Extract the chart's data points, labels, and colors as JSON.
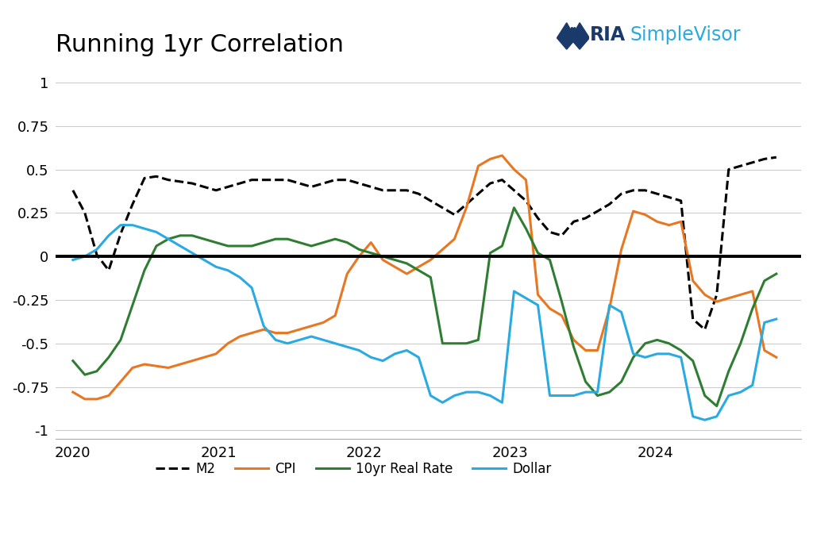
{
  "title": "Running 1yr Correlation",
  "title_fontsize": 22,
  "background_color": "#ffffff",
  "ylim": [
    -1.05,
    1.1
  ],
  "yticks": [
    -1,
    -0.75,
    -0.5,
    -0.25,
    0,
    0.25,
    0.5,
    0.75,
    1
  ],
  "xtick_labels": [
    "2020",
    "2021",
    "2022",
    "2023",
    "2024"
  ],
  "series": {
    "M2": {
      "color": "#000000",
      "linestyle": "--",
      "linewidth": 2.2,
      "y": [
        0.38,
        0.25,
        0.01,
        -0.08,
        0.13,
        0.3,
        0.45,
        0.46,
        0.44,
        0.43,
        0.42,
        0.4,
        0.38,
        0.4,
        0.42,
        0.44,
        0.44,
        0.44,
        0.44,
        0.42,
        0.4,
        0.42,
        0.44,
        0.44,
        0.42,
        0.4,
        0.38,
        0.38,
        0.38,
        0.36,
        0.32,
        0.28,
        0.24,
        0.3,
        0.36,
        0.42,
        0.44,
        0.38,
        0.32,
        0.22,
        0.14,
        0.12,
        0.2,
        0.22,
        0.26,
        0.3,
        0.36,
        0.38,
        0.38,
        0.36,
        0.34,
        0.32,
        -0.36,
        -0.42,
        -0.22,
        0.5,
        0.52,
        0.54,
        0.56,
        0.57
      ]
    },
    "CPI": {
      "color": "#e87722",
      "linestyle": "-",
      "linewidth": 2.2,
      "y": [
        -0.78,
        -0.82,
        -0.82,
        -0.8,
        -0.72,
        -0.64,
        -0.62,
        -0.63,
        -0.64,
        -0.62,
        -0.6,
        -0.58,
        -0.56,
        -0.5,
        -0.46,
        -0.44,
        -0.42,
        -0.44,
        -0.44,
        -0.42,
        -0.4,
        -0.38,
        -0.34,
        -0.1,
        0.0,
        0.08,
        -0.02,
        -0.06,
        -0.1,
        -0.06,
        -0.02,
        0.04,
        0.1,
        0.28,
        0.52,
        0.56,
        0.58,
        0.5,
        0.44,
        -0.22,
        -0.3,
        -0.34,
        -0.48,
        -0.54,
        -0.54,
        -0.3,
        0.04,
        0.26,
        0.24,
        0.2,
        0.18,
        0.2,
        -0.14,
        -0.22,
        -0.26,
        -0.24,
        -0.22,
        -0.2,
        -0.54,
        -0.58
      ]
    },
    "10yr_Real_Rate": {
      "color": "#2e7d32",
      "linestyle": "-",
      "linewidth": 2.2,
      "y": [
        -0.6,
        -0.68,
        -0.66,
        -0.58,
        -0.48,
        -0.28,
        -0.08,
        0.06,
        0.1,
        0.12,
        0.12,
        0.1,
        0.08,
        0.06,
        0.06,
        0.06,
        0.08,
        0.1,
        0.1,
        0.08,
        0.06,
        0.08,
        0.1,
        0.08,
        0.04,
        0.02,
        0.0,
        -0.02,
        -0.04,
        -0.08,
        -0.12,
        -0.5,
        -0.5,
        -0.5,
        -0.48,
        0.02,
        0.06,
        0.28,
        0.16,
        0.02,
        -0.02,
        -0.26,
        -0.52,
        -0.72,
        -0.8,
        -0.78,
        -0.72,
        -0.58,
        -0.5,
        -0.48,
        -0.5,
        -0.54,
        -0.6,
        -0.8,
        -0.86,
        -0.66,
        -0.5,
        -0.3,
        -0.14,
        -0.1
      ]
    },
    "Dollar": {
      "color": "#29aae1",
      "linestyle": "-",
      "linewidth": 2.2,
      "y": [
        -0.02,
        0.0,
        0.04,
        0.12,
        0.18,
        0.18,
        0.16,
        0.14,
        0.1,
        0.06,
        0.02,
        -0.02,
        -0.06,
        -0.08,
        -0.12,
        -0.18,
        -0.4,
        -0.48,
        -0.5,
        -0.48,
        -0.46,
        -0.48,
        -0.5,
        -0.52,
        -0.54,
        -0.58,
        -0.6,
        -0.56,
        -0.54,
        -0.58,
        -0.8,
        -0.84,
        -0.8,
        -0.78,
        -0.78,
        -0.8,
        -0.84,
        -0.2,
        -0.24,
        -0.28,
        -0.8,
        -0.8,
        -0.8,
        -0.78,
        -0.78,
        -0.28,
        -0.32,
        -0.56,
        -0.58,
        -0.56,
        -0.56,
        -0.58,
        -0.92,
        -0.94,
        -0.92,
        -0.8,
        -0.78,
        -0.74,
        -0.38,
        -0.36
      ]
    }
  },
  "legend_entries": [
    "M2",
    "CPI",
    "10yr Real Rate",
    "Dollar"
  ],
  "ria_color": "#1a3a6b",
  "sv_color": "#29aae1"
}
